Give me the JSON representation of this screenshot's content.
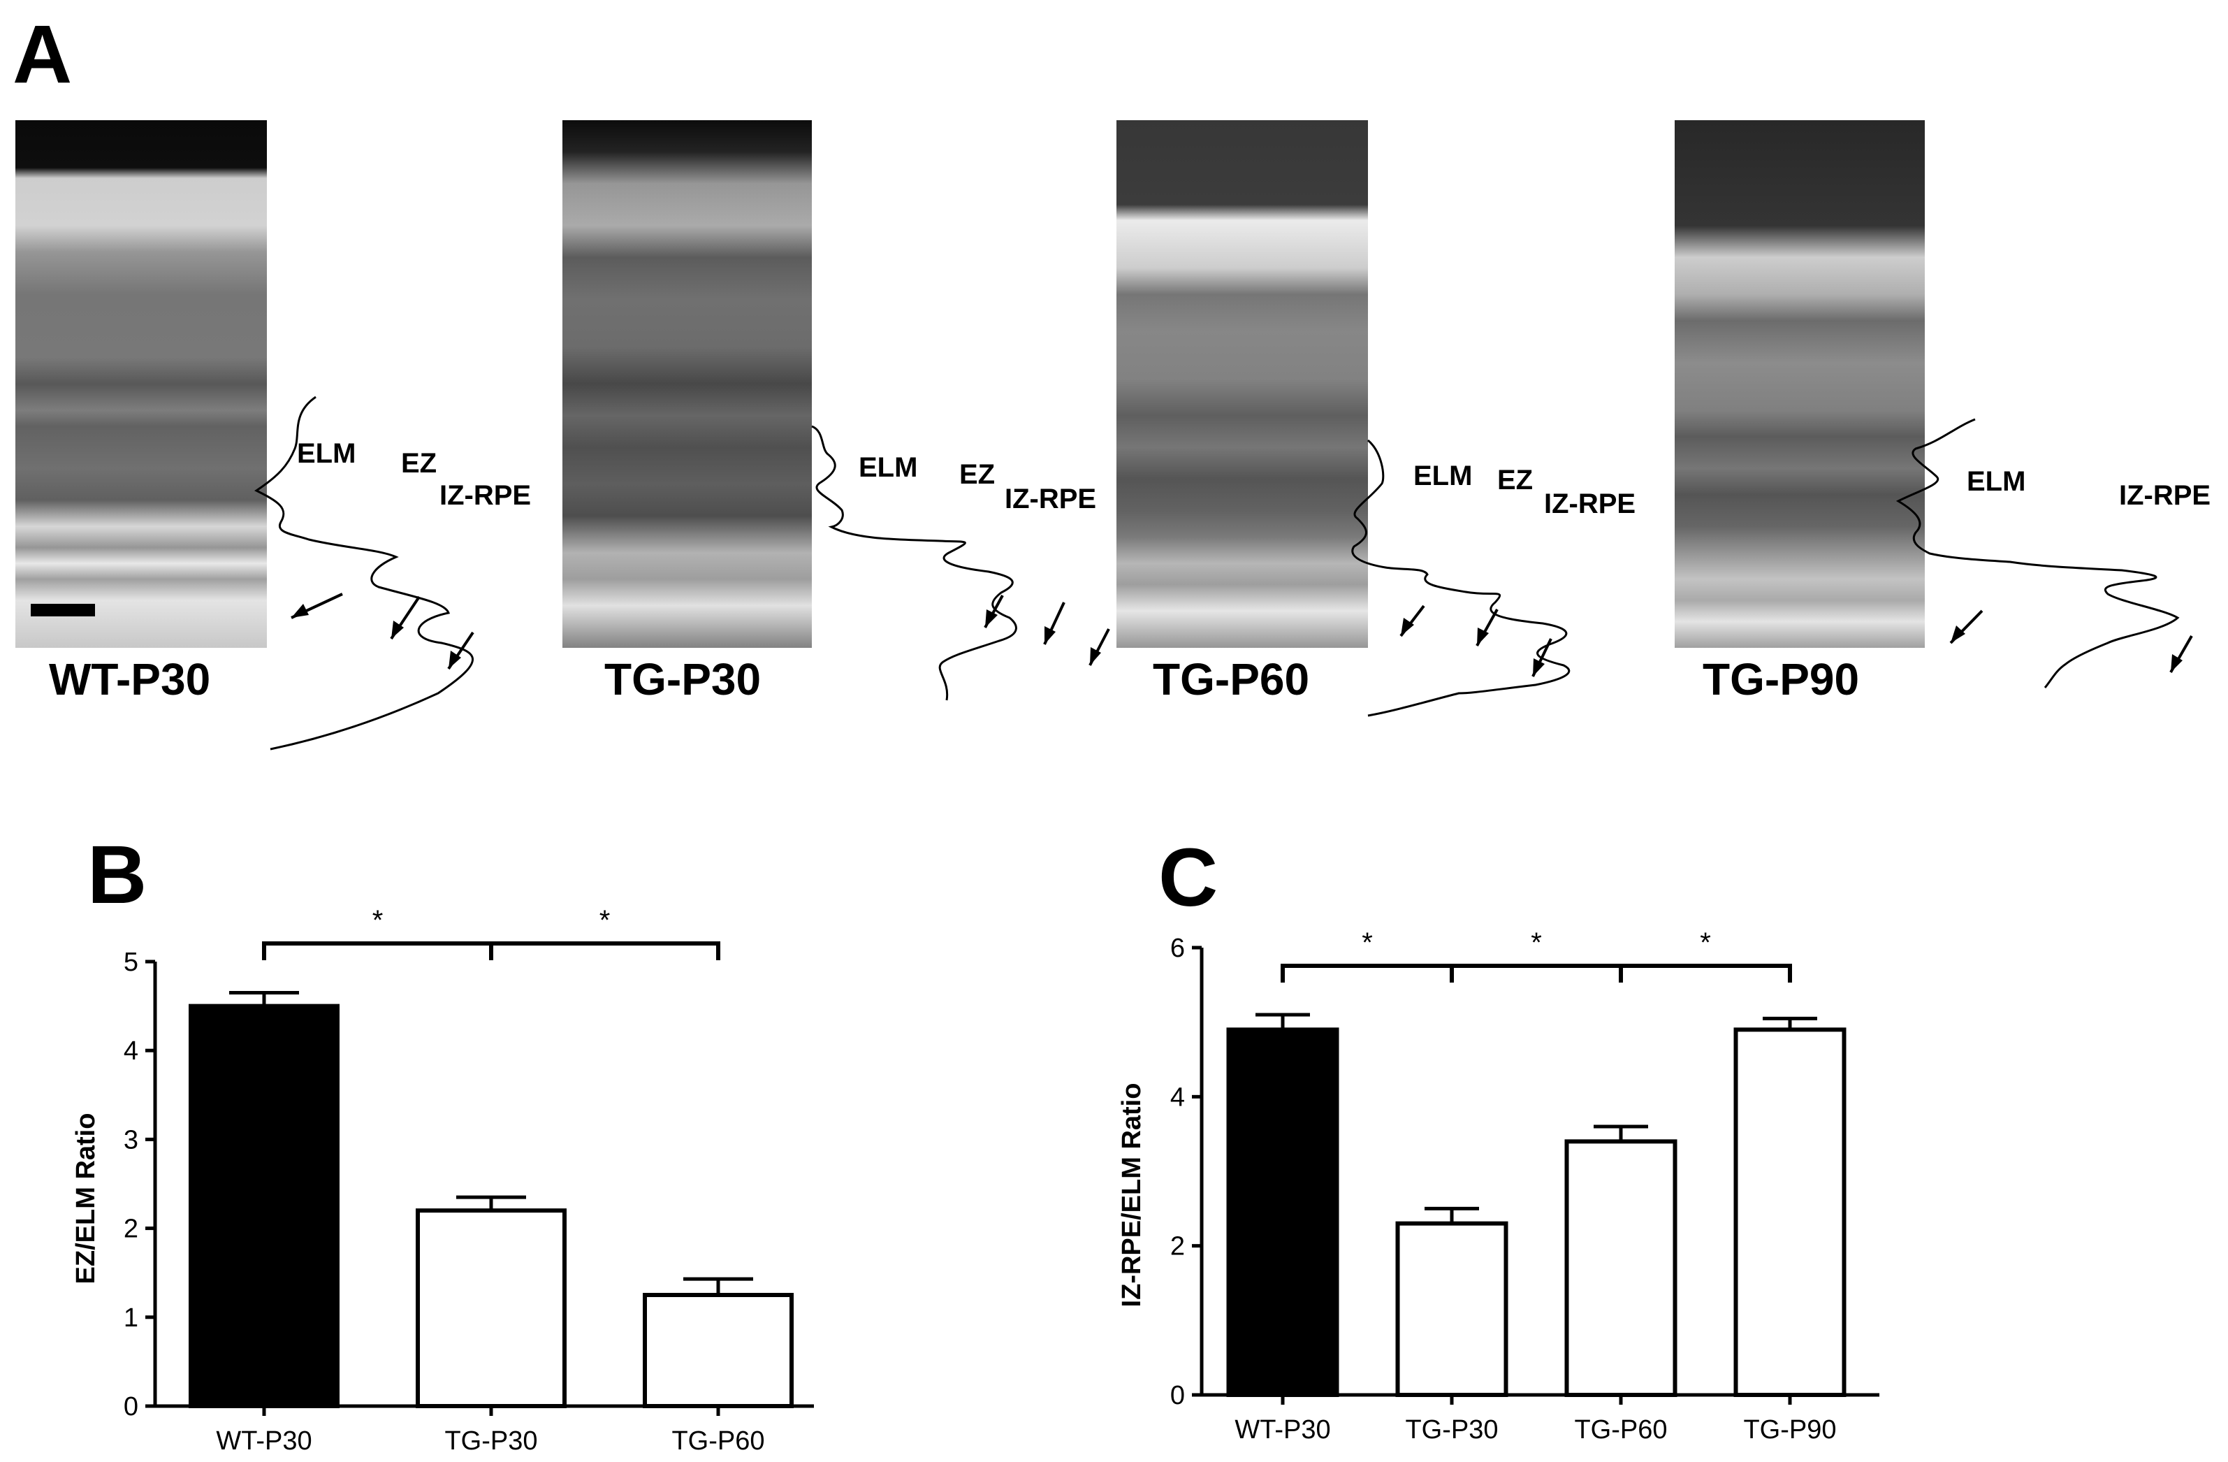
{
  "panel_a": {
    "letter": "A",
    "scale_bar": "",
    "samples": [
      {
        "label": "WT-P30",
        "markers": [
          "ELM",
          "EZ",
          "IZ-RPE"
        ],
        "bands": [
          {
            "y": 0.0,
            "v": 10
          },
          {
            "y": 0.09,
            "v": 14
          },
          {
            "y": 0.11,
            "v": 205
          },
          {
            "y": 0.2,
            "v": 210
          },
          {
            "y": 0.25,
            "v": 150
          },
          {
            "y": 0.33,
            "v": 118
          },
          {
            "y": 0.45,
            "v": 120
          },
          {
            "y": 0.5,
            "v": 88
          },
          {
            "y": 0.55,
            "v": 125
          },
          {
            "y": 0.58,
            "v": 98
          },
          {
            "y": 0.66,
            "v": 112
          },
          {
            "y": 0.72,
            "v": 96
          },
          {
            "y": 0.77,
            "v": 215
          },
          {
            "y": 0.81,
            "v": 150
          },
          {
            "y": 0.84,
            "v": 232
          },
          {
            "y": 0.87,
            "v": 160
          },
          {
            "y": 0.91,
            "v": 228
          },
          {
            "y": 1.0,
            "v": 200
          }
        ]
      },
      {
        "label": "TG-P30",
        "markers": [
          "ELM",
          "EZ",
          "IZ-RPE"
        ],
        "bands": [
          {
            "y": 0.0,
            "v": 12
          },
          {
            "y": 0.06,
            "v": 35
          },
          {
            "y": 0.12,
            "v": 150
          },
          {
            "y": 0.2,
            "v": 170
          },
          {
            "y": 0.26,
            "v": 92
          },
          {
            "y": 0.34,
            "v": 112
          },
          {
            "y": 0.43,
            "v": 108
          },
          {
            "y": 0.5,
            "v": 72
          },
          {
            "y": 0.56,
            "v": 102
          },
          {
            "y": 0.62,
            "v": 80
          },
          {
            "y": 0.69,
            "v": 94
          },
          {
            "y": 0.75,
            "v": 78
          },
          {
            "y": 0.82,
            "v": 178
          },
          {
            "y": 0.87,
            "v": 158
          },
          {
            "y": 0.92,
            "v": 225
          },
          {
            "y": 1.0,
            "v": 130
          }
        ]
      },
      {
        "label": "TG-P60",
        "markers": [
          "ELM",
          "EZ",
          "IZ-RPE"
        ],
        "bands": [
          {
            "y": 0.0,
            "v": 55
          },
          {
            "y": 0.16,
            "v": 60
          },
          {
            "y": 0.19,
            "v": 235
          },
          {
            "y": 0.28,
            "v": 205
          },
          {
            "y": 0.33,
            "v": 118
          },
          {
            "y": 0.4,
            "v": 135
          },
          {
            "y": 0.49,
            "v": 130
          },
          {
            "y": 0.56,
            "v": 95
          },
          {
            "y": 0.62,
            "v": 118
          },
          {
            "y": 0.68,
            "v": 85
          },
          {
            "y": 0.74,
            "v": 98
          },
          {
            "y": 0.79,
            "v": 122
          },
          {
            "y": 0.84,
            "v": 182
          },
          {
            "y": 0.88,
            "v": 158
          },
          {
            "y": 0.93,
            "v": 230
          },
          {
            "y": 1.0,
            "v": 150
          }
        ]
      },
      {
        "label": "TG-P90",
        "markers": [
          "ELM",
          "IZ-RPE"
        ],
        "bands": [
          {
            "y": 0.0,
            "v": 40
          },
          {
            "y": 0.2,
            "v": 52
          },
          {
            "y": 0.26,
            "v": 205
          },
          {
            "y": 0.33,
            "v": 175
          },
          {
            "y": 0.38,
            "v": 108
          },
          {
            "y": 0.46,
            "v": 140
          },
          {
            "y": 0.55,
            "v": 128
          },
          {
            "y": 0.6,
            "v": 92
          },
          {
            "y": 0.66,
            "v": 118
          },
          {
            "y": 0.71,
            "v": 85
          },
          {
            "y": 0.77,
            "v": 102
          },
          {
            "y": 0.82,
            "v": 148
          },
          {
            "y": 0.87,
            "v": 195
          },
          {
            "y": 0.91,
            "v": 170
          },
          {
            "y": 0.95,
            "v": 228
          },
          {
            "y": 1.0,
            "v": 160
          }
        ]
      }
    ]
  },
  "chart_data": [
    {
      "panel": "B",
      "type": "bar",
      "categories": [
        "WT-P30",
        "TG-P30",
        "TG-P60"
      ],
      "values": [
        4.5,
        2.2,
        1.25
      ],
      "errors": [
        0.15,
        0.15,
        0.18
      ],
      "fills": [
        "#000000",
        "#ffffff",
        "#ffffff"
      ],
      "title": "",
      "xlabel": "",
      "ylabel": "EZ/ELM Ratio",
      "ylim": [
        0,
        5
      ],
      "yticks": [
        "0",
        "1",
        "2",
        "3",
        "4",
        "5"
      ],
      "significance": [
        {
          "from": "WT-P30",
          "to": "TG-P30",
          "label": "*"
        },
        {
          "from": "TG-P30",
          "to": "TG-P60",
          "label": "*"
        }
      ]
    },
    {
      "panel": "C",
      "type": "bar",
      "categories": [
        "WT-P30",
        "TG-P30",
        "TG-P60",
        "TG-P90"
      ],
      "values": [
        4.9,
        2.3,
        3.4,
        4.9
      ],
      "errors": [
        0.2,
        0.2,
        0.2,
        0.15
      ],
      "fills": [
        "#000000",
        "#ffffff",
        "#ffffff",
        "#ffffff"
      ],
      "title": "",
      "xlabel": "",
      "ylabel": "IZ-RPE/ELM Ratio",
      "ylim": [
        0,
        6
      ],
      "yticks": [
        "0",
        "2",
        "4",
        "6"
      ],
      "significance": [
        {
          "from": "WT-P30",
          "to": "TG-P30",
          "label": "*"
        },
        {
          "from": "TG-P30",
          "to": "TG-P60",
          "label": "*"
        },
        {
          "from": "TG-P60",
          "to": "TG-P90",
          "label": "*"
        }
      ]
    }
  ]
}
